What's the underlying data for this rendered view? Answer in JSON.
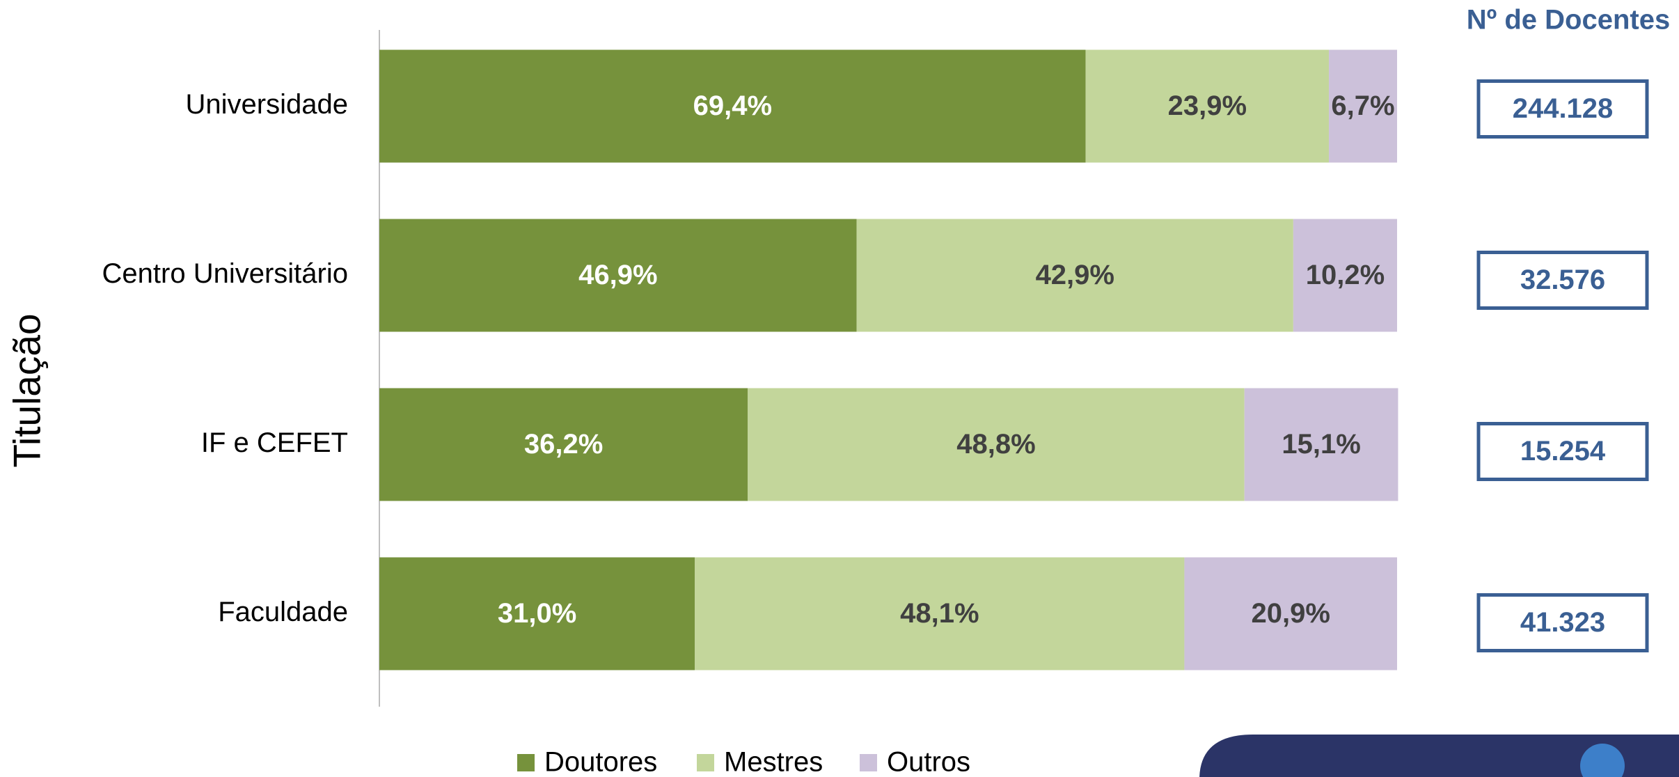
{
  "chart_data": {
    "type": "stacked_bar_horizontal",
    "y_label": "Titulação",
    "categories": [
      "Universidade",
      "Centro Universitário",
      "IF e CEFET",
      "Faculdade"
    ],
    "series": [
      {
        "name": "Doutores",
        "color": "#76923c",
        "values": [
          69.4,
          46.9,
          36.2,
          31.0
        ],
        "value_labels": [
          "69,4%",
          "46,9%",
          "36,2%",
          "31,0%"
        ]
      },
      {
        "name": "Mestres",
        "color": "#c3d69b",
        "values": [
          23.9,
          42.9,
          48.8,
          48.1
        ],
        "value_labels": [
          "23,9%",
          "42,9%",
          "48,8%",
          "48,1%"
        ]
      },
      {
        "name": "Outros",
        "color": "#ccc1da",
        "values": [
          6.7,
          10.2,
          15.1,
          20.9
        ],
        "value_labels": [
          "6,7%",
          "10,2%",
          "15,1%",
          "20,9%"
        ]
      }
    ],
    "xlim": [
      0,
      100
    ]
  },
  "docentes": {
    "title": "Nº de Docentes",
    "values": [
      244128,
      32576,
      15254,
      41323
    ],
    "value_labels": [
      "244.128",
      "32.576",
      "15.254",
      "41.323"
    ]
  }
}
